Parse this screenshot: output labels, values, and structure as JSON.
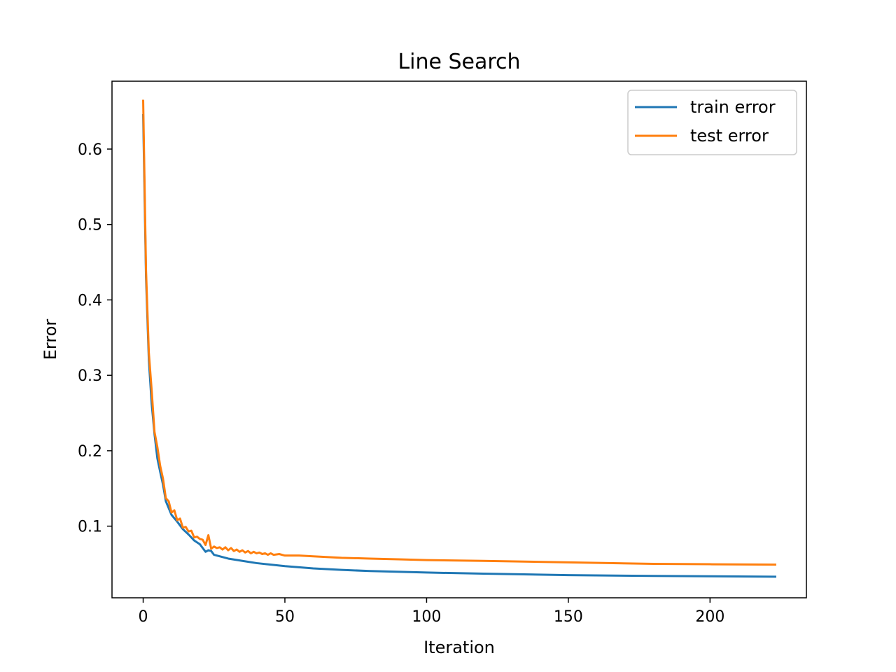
{
  "chart_data": {
    "type": "line",
    "title": "Line Search",
    "xlabel": "Iteration",
    "ylabel": "Error",
    "xlim": [
      -11,
      234
    ],
    "ylim": [
      0.005,
      0.69
    ],
    "x_ticks": [
      0,
      50,
      100,
      150,
      200
    ],
    "x_tick_labels": [
      "0",
      "50",
      "100",
      "150",
      "200"
    ],
    "y_ticks": [
      0.1,
      0.2,
      0.3,
      0.4,
      0.5,
      0.6
    ],
    "y_tick_labels": [
      "0.1",
      "0.2",
      "0.3",
      "0.4",
      "0.5",
      "0.6"
    ],
    "grid": false,
    "legend": "top-right",
    "series": [
      {
        "name": "train error",
        "color": "#1f77b4",
        "points": [
          [
            0,
            0.645
          ],
          [
            1,
            0.43
          ],
          [
            2,
            0.32
          ],
          [
            3,
            0.262
          ],
          [
            4,
            0.222
          ],
          [
            5,
            0.19
          ],
          [
            6,
            0.172
          ],
          [
            7,
            0.155
          ],
          [
            8,
            0.133
          ],
          [
            9,
            0.124
          ],
          [
            10,
            0.115
          ],
          [
            12,
            0.106
          ],
          [
            14,
            0.096
          ],
          [
            16,
            0.089
          ],
          [
            18,
            0.081
          ],
          [
            20,
            0.076
          ],
          [
            22,
            0.066
          ],
          [
            23,
            0.068
          ],
          [
            24,
            0.067
          ],
          [
            25,
            0.062
          ],
          [
            30,
            0.057
          ],
          [
            35,
            0.054
          ],
          [
            40,
            0.051
          ],
          [
            50,
            0.047
          ],
          [
            60,
            0.044
          ],
          [
            70,
            0.042
          ],
          [
            80,
            0.0405
          ],
          [
            100,
            0.0385
          ],
          [
            120,
            0.037
          ],
          [
            150,
            0.035
          ],
          [
            180,
            0.034
          ],
          [
            200,
            0.0335
          ],
          [
            223,
            0.033
          ]
        ]
      },
      {
        "name": "test error",
        "color": "#ff7f0e",
        "points": [
          [
            0,
            0.664
          ],
          [
            1,
            0.44
          ],
          [
            2,
            0.33
          ],
          [
            3,
            0.28
          ],
          [
            4,
            0.225
          ],
          [
            5,
            0.205
          ],
          [
            6,
            0.18
          ],
          [
            7,
            0.163
          ],
          [
            8,
            0.137
          ],
          [
            9,
            0.133
          ],
          [
            10,
            0.118
          ],
          [
            11,
            0.121
          ],
          [
            12,
            0.108
          ],
          [
            13,
            0.11
          ],
          [
            14,
            0.098
          ],
          [
            15,
            0.099
          ],
          [
            16,
            0.093
          ],
          [
            17,
            0.094
          ],
          [
            18,
            0.085
          ],
          [
            19,
            0.086
          ],
          [
            20,
            0.083
          ],
          [
            21,
            0.082
          ],
          [
            22,
            0.075
          ],
          [
            23,
            0.088
          ],
          [
            24,
            0.07
          ],
          [
            25,
            0.073
          ],
          [
            26,
            0.071
          ],
          [
            27,
            0.072
          ],
          [
            28,
            0.069
          ],
          [
            29,
            0.072
          ],
          [
            30,
            0.068
          ],
          [
            31,
            0.071
          ],
          [
            32,
            0.067
          ],
          [
            33,
            0.069
          ],
          [
            34,
            0.066
          ],
          [
            35,
            0.068
          ],
          [
            36,
            0.065
          ],
          [
            37,
            0.067
          ],
          [
            38,
            0.064
          ],
          [
            39,
            0.066
          ],
          [
            40,
            0.064
          ],
          [
            41,
            0.065
          ],
          [
            42,
            0.063
          ],
          [
            43,
            0.064
          ],
          [
            44,
            0.062
          ],
          [
            45,
            0.064
          ],
          [
            46,
            0.062
          ],
          [
            48,
            0.063
          ],
          [
            50,
            0.061
          ],
          [
            55,
            0.061
          ],
          [
            60,
            0.06
          ],
          [
            70,
            0.058
          ],
          [
            80,
            0.057
          ],
          [
            90,
            0.056
          ],
          [
            100,
            0.055
          ],
          [
            120,
            0.054
          ],
          [
            150,
            0.052
          ],
          [
            180,
            0.05
          ],
          [
            200,
            0.0495
          ],
          [
            223,
            0.049
          ]
        ]
      }
    ]
  }
}
